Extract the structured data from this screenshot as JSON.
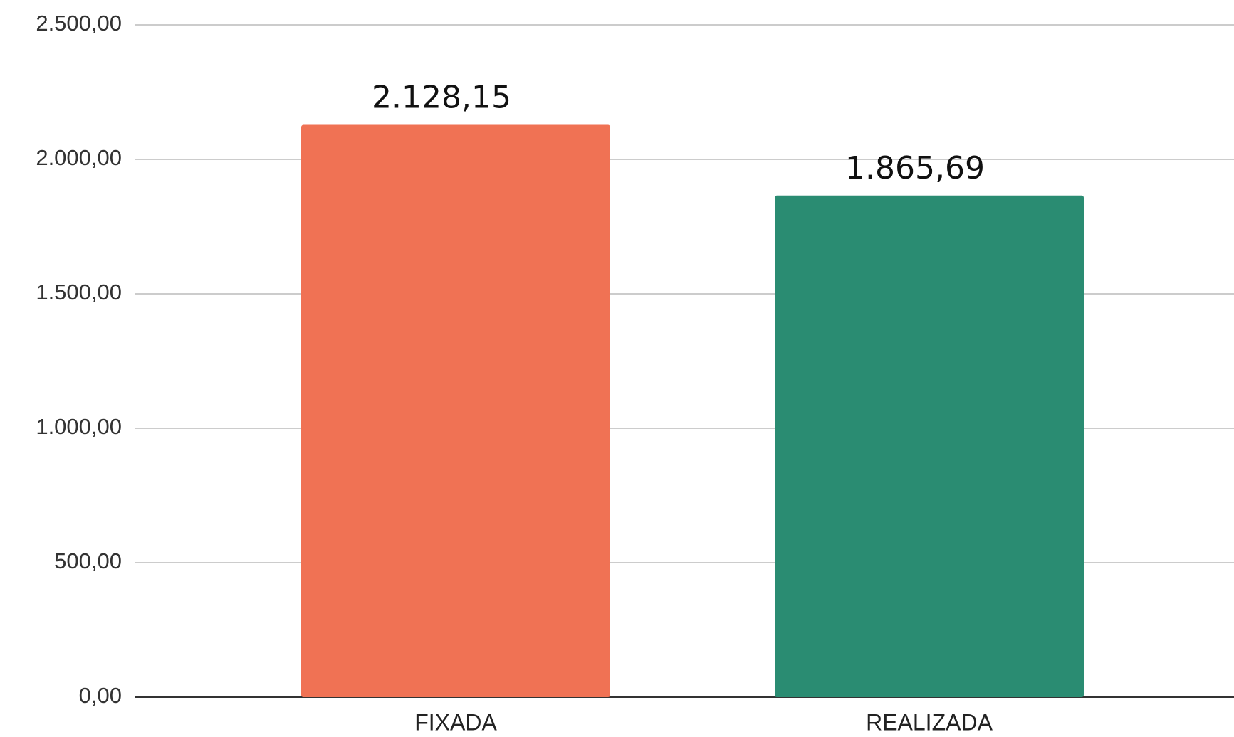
{
  "chart_data": {
    "type": "bar",
    "categories": [
      "FIXADA",
      "REALIZADA"
    ],
    "values": [
      2128.15,
      1865.69
    ],
    "value_labels": [
      "2.128,15",
      "1.865,69"
    ],
    "colors": [
      "#f07254",
      "#2a8c72"
    ],
    "ylim": [
      0,
      2500
    ],
    "yticks": [
      {
        "value": 0,
        "label": "0,00"
      },
      {
        "value": 500,
        "label": "500,00"
      },
      {
        "value": 1000,
        "label": "1.000,00"
      },
      {
        "value": 1500,
        "label": "1.500,00"
      },
      {
        "value": 2000,
        "label": "2.000,00"
      },
      {
        "value": 2500,
        "label": "2.500,00"
      }
    ],
    "grid": true
  }
}
